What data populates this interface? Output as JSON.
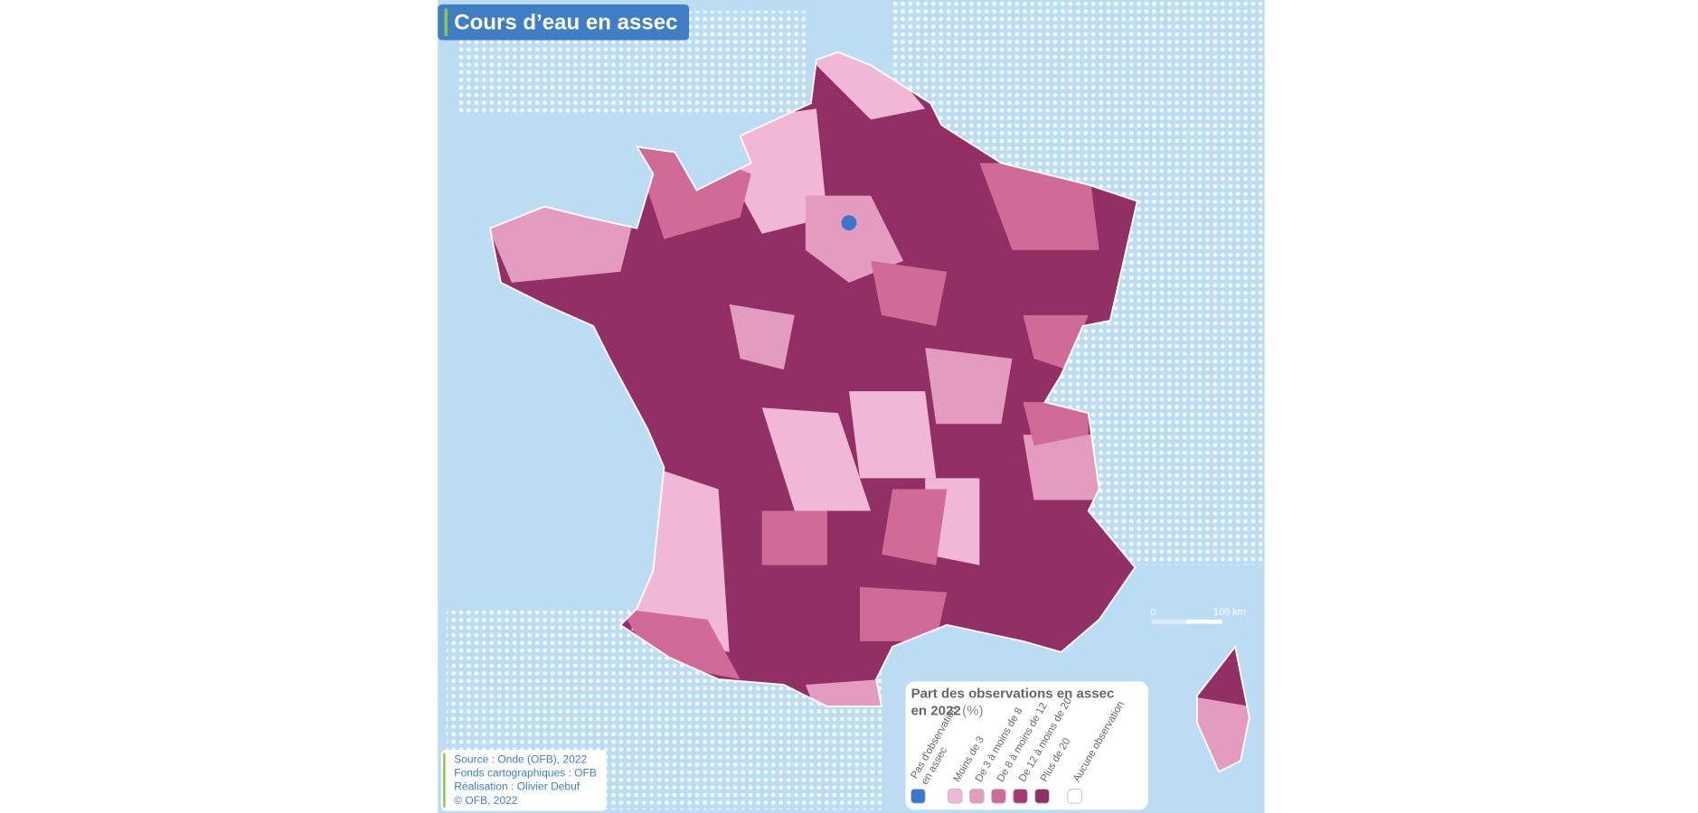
{
  "header": {
    "title": "Cours d’eau en assec"
  },
  "legend": {
    "title": "Part des observations en assec en 2022",
    "unit": "(%)",
    "items": [
      {
        "label": "Pas d'observation en assec",
        "color": "#3a78c9"
      },
      {
        "label": "Moins de 3",
        "color": "#f0b7d6"
      },
      {
        "label": "De 3 à moins de 8",
        "color": "#e49bc0"
      },
      {
        "label": "De 8 à moins de 12",
        "color": "#d06b98"
      },
      {
        "label": "De 12 à moins de 20",
        "color": "#a53a72"
      },
      {
        "label": "Plus de 20",
        "color": "#922f64"
      },
      {
        "label": "Aucune observation",
        "color": "#ffffff"
      }
    ]
  },
  "scale": {
    "start": "0",
    "end": "100 km"
  },
  "credits": [
    "Source : Onde (OFB), 2022",
    "Fonds cartographiques : OFB",
    "Réalisation : Olivier Debuf",
    "© OFB, 2022"
  ]
}
